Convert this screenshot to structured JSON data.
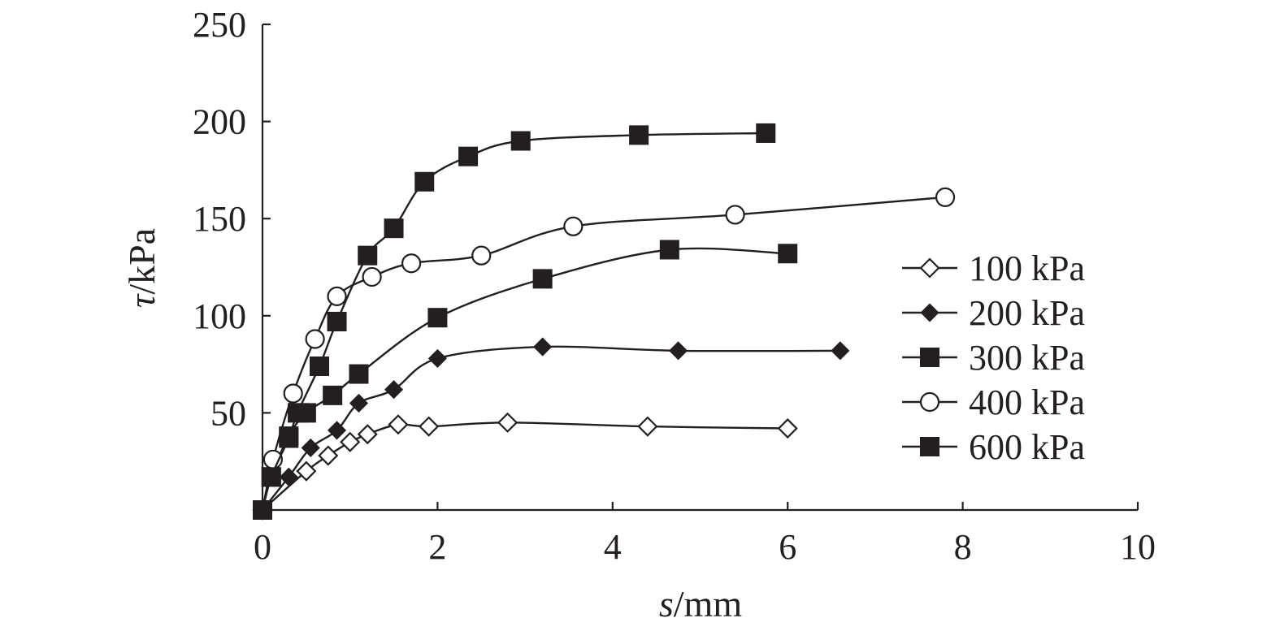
{
  "chart_data": {
    "type": "line",
    "title": "",
    "xlabel_symbol": "s",
    "xlabel_unit": "/mm",
    "ylabel_symbol": "τ",
    "ylabel_unit": "/kPa",
    "xlim": [
      0,
      10
    ],
    "ylim": [
      0,
      250
    ],
    "xticks": [
      0,
      2,
      4,
      6,
      8,
      10
    ],
    "yticks": [
      50,
      100,
      150,
      200,
      250
    ],
    "grid": false,
    "legend_position": "right",
    "line_color": "#231f20",
    "series": [
      {
        "name": "100 kPa",
        "marker": "diamond-open",
        "points": [
          [
            0,
            0
          ],
          [
            0.5,
            20
          ],
          [
            0.75,
            28
          ],
          [
            1.0,
            35
          ],
          [
            1.2,
            39
          ],
          [
            1.55,
            44
          ],
          [
            1.9,
            43
          ],
          [
            2.8,
            45
          ],
          [
            4.4,
            43
          ],
          [
            6.0,
            42
          ]
        ]
      },
      {
        "name": "200 kPa",
        "marker": "diamond-filled",
        "points": [
          [
            0,
            0
          ],
          [
            0.3,
            17
          ],
          [
            0.55,
            32
          ],
          [
            0.85,
            41
          ],
          [
            1.1,
            55
          ],
          [
            1.5,
            62
          ],
          [
            2.0,
            78
          ],
          [
            3.2,
            84
          ],
          [
            4.75,
            82
          ],
          [
            6.6,
            82
          ]
        ]
      },
      {
        "name": "300 kPa",
        "marker": "square-filled",
        "points": [
          [
            0,
            0
          ],
          [
            0.1,
            17
          ],
          [
            0.3,
            38
          ],
          [
            0.5,
            50
          ],
          [
            0.8,
            59
          ],
          [
            1.1,
            70
          ],
          [
            2.0,
            99
          ],
          [
            3.2,
            119
          ],
          [
            4.65,
            134
          ],
          [
            6.0,
            132
          ]
        ]
      },
      {
        "name": "400 kPa",
        "marker": "circle-open",
        "points": [
          [
            0,
            0
          ],
          [
            0.12,
            26
          ],
          [
            0.35,
            60
          ],
          [
            0.6,
            88
          ],
          [
            0.85,
            110
          ],
          [
            1.25,
            120
          ],
          [
            1.7,
            127
          ],
          [
            2.5,
            131
          ],
          [
            3.55,
            146
          ],
          [
            5.4,
            152
          ],
          [
            7.8,
            161
          ]
        ]
      },
      {
        "name": "600 kPa",
        "marker": "square-filled",
        "points": [
          [
            0,
            0
          ],
          [
            0.1,
            17
          ],
          [
            0.3,
            37
          ],
          [
            0.4,
            50
          ],
          [
            0.65,
            74
          ],
          [
            0.85,
            97
          ],
          [
            1.2,
            131
          ],
          [
            1.5,
            145
          ],
          [
            1.85,
            169
          ],
          [
            2.35,
            182
          ],
          [
            2.95,
            190
          ],
          [
            4.3,
            193
          ],
          [
            5.75,
            194
          ]
        ]
      }
    ]
  }
}
